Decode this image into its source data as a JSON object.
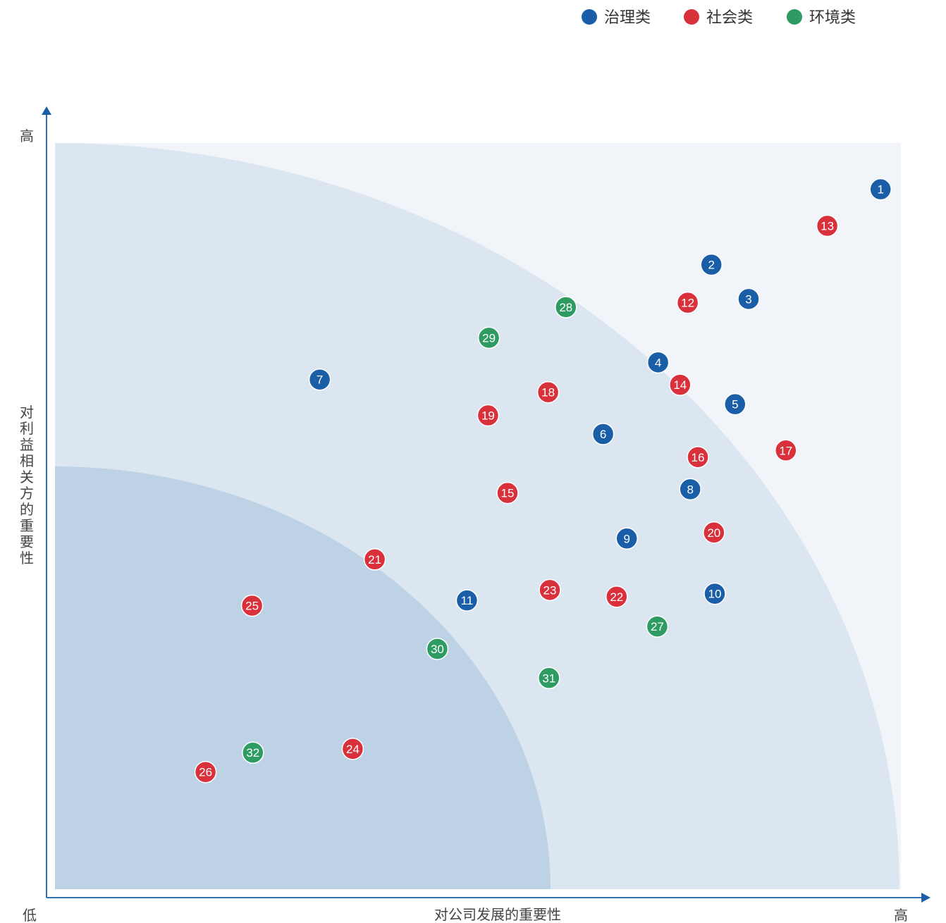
{
  "chart_data": {
    "type": "scatter",
    "title": "",
    "xlabel": "对公司发展的重要性",
    "ylabel": "对利益相关方的重要性",
    "x_low_label": "低",
    "x_high_label": "高",
    "y_high_label": "高",
    "xlim": [
      0,
      100
    ],
    "ylim": [
      0,
      100
    ],
    "grid": false,
    "legend_position": "top-right",
    "series": [
      {
        "name": "治理类",
        "color": "#1a5ea8",
        "points": [
          {
            "id": "1",
            "x": 97.6,
            "y": 93.8
          },
          {
            "id": "2",
            "x": 77.6,
            "y": 83.7
          },
          {
            "id": "3",
            "x": 82.0,
            "y": 79.1
          },
          {
            "id": "4",
            "x": 71.3,
            "y": 70.6
          },
          {
            "id": "5",
            "x": 80.4,
            "y": 65.0
          },
          {
            "id": "6",
            "x": 64.8,
            "y": 61.0
          },
          {
            "id": "7",
            "x": 31.3,
            "y": 68.3
          },
          {
            "id": "8",
            "x": 75.1,
            "y": 53.6
          },
          {
            "id": "9",
            "x": 67.6,
            "y": 47.0
          },
          {
            "id": "10",
            "x": 78.0,
            "y": 39.6
          },
          {
            "id": "11",
            "x": 48.7,
            "y": 38.7
          }
        ]
      },
      {
        "name": "社会类",
        "color": "#d9313b",
        "points": [
          {
            "id": "12",
            "x": 74.8,
            "y": 78.6
          },
          {
            "id": "13",
            "x": 91.3,
            "y": 88.9
          },
          {
            "id": "14",
            "x": 73.9,
            "y": 67.6
          },
          {
            "id": "15",
            "x": 53.5,
            "y": 53.1
          },
          {
            "id": "16",
            "x": 76.0,
            "y": 57.9
          },
          {
            "id": "17",
            "x": 86.4,
            "y": 58.8
          },
          {
            "id": "18",
            "x": 58.3,
            "y": 66.6
          },
          {
            "id": "19",
            "x": 51.2,
            "y": 63.5
          },
          {
            "id": "20",
            "x": 77.9,
            "y": 47.8
          },
          {
            "id": "21",
            "x": 37.8,
            "y": 44.2
          },
          {
            "id": "22",
            "x": 66.4,
            "y": 39.2
          },
          {
            "id": "23",
            "x": 58.5,
            "y": 40.1
          },
          {
            "id": "24",
            "x": 35.2,
            "y": 18.8
          },
          {
            "id": "25",
            "x": 23.3,
            "y": 38.0
          },
          {
            "id": "26",
            "x": 17.8,
            "y": 15.7
          }
        ]
      },
      {
        "name": "环境类",
        "color": "#2e9c62",
        "points": [
          {
            "id": "27",
            "x": 71.2,
            "y": 35.2
          },
          {
            "id": "28",
            "x": 60.4,
            "y": 78.0
          },
          {
            "id": "29",
            "x": 51.3,
            "y": 73.9
          },
          {
            "id": "30",
            "x": 45.2,
            "y": 32.2
          },
          {
            "id": "31",
            "x": 58.4,
            "y": 28.3
          },
          {
            "id": "32",
            "x": 23.4,
            "y": 18.3
          }
        ]
      }
    ]
  }
}
